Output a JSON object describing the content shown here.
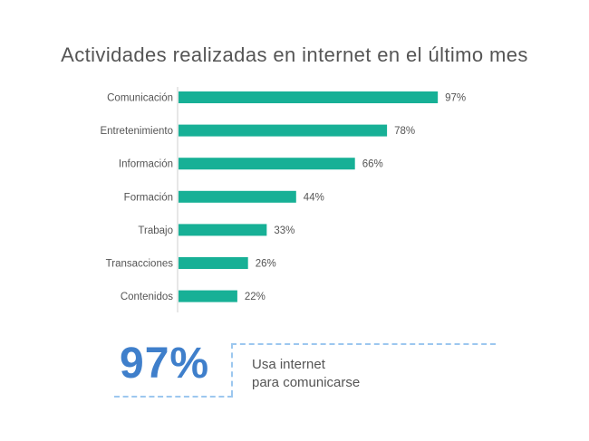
{
  "chart_data": {
    "type": "bar",
    "orientation": "horizontal",
    "title": "Actividades realizadas en internet en el último mes",
    "categories": [
      "Comunicación",
      "Entretenimiento",
      "Información",
      "Formación",
      "Trabajo",
      "Transacciones",
      "Contenidos"
    ],
    "values": [
      97,
      78,
      66,
      44,
      33,
      26,
      22
    ],
    "value_labels": [
      "97%",
      "78%",
      "66%",
      "44%",
      "33%",
      "26%",
      "22%"
    ],
    "unit": "%",
    "bar_color": "#17b096",
    "grid": false,
    "legend": "none"
  },
  "highlight": {
    "value": "97%",
    "caption_line1": "Usa internet",
    "caption_line2": "para comunicarse",
    "color": "#3f7fcb",
    "border_color": "#9cc7ef"
  }
}
